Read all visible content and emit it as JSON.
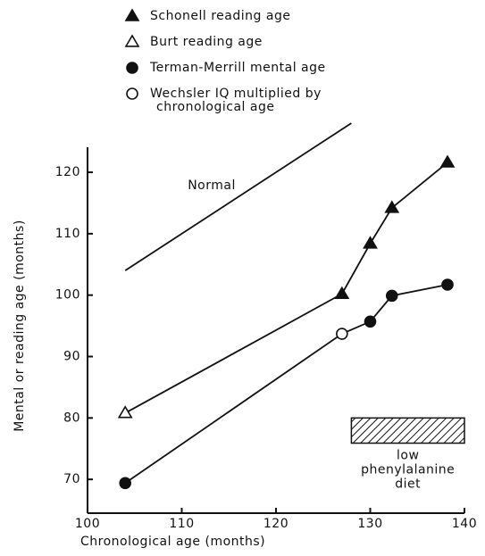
{
  "chart_data": {
    "type": "line",
    "xlabel": "Chronological age  (months)",
    "ylabel": "Mental or reading age  (months)",
    "xlim": [
      100,
      140
    ],
    "ylim": [
      64.5,
      128
    ],
    "xticks": [
      100,
      110,
      120,
      130,
      140
    ],
    "yticks": [
      70,
      80,
      90,
      100,
      110,
      120
    ],
    "legend": [
      {
        "label": "Schonell reading age",
        "marker": "triangle"
      },
      {
        "label": "Burt reading age",
        "marker": "open-triangle"
      },
      {
        "label": "Terman-Merrill mental age",
        "marker": "circle"
      },
      {
        "label": [
          "Wechsler IQ multiplied by",
          "chronological age"
        ],
        "marker": "open-circle"
      }
    ],
    "series": [
      {
        "name": "Normal",
        "color": "#111",
        "x": [
          104,
          128
        ],
        "values": [
          104,
          128
        ],
        "markers": [
          null,
          null
        ]
      },
      {
        "color": "#111",
        "x": [
          104,
          127,
          130,
          132.3,
          138.2
        ],
        "values": [
          80.8,
          100.2,
          108.4,
          114.2,
          121.6
        ],
        "markers": [
          "open-triangle",
          "triangle",
          "triangle",
          "triangle",
          "triangle"
        ]
      },
      {
        "color": "#111",
        "x": [
          104,
          127,
          130,
          132.3,
          138.2
        ],
        "values": [
          69.4,
          93.7,
          95.7,
          99.9,
          101.7
        ],
        "markers": [
          "circle",
          "open-circle",
          "circle",
          "circle",
          "circle"
        ]
      }
    ],
    "diet_period": {
      "x": [
        128,
        140
      ],
      "y": [
        75.9,
        80
      ],
      "label": [
        "low",
        "phenylalanine",
        "diet"
      ]
    }
  }
}
